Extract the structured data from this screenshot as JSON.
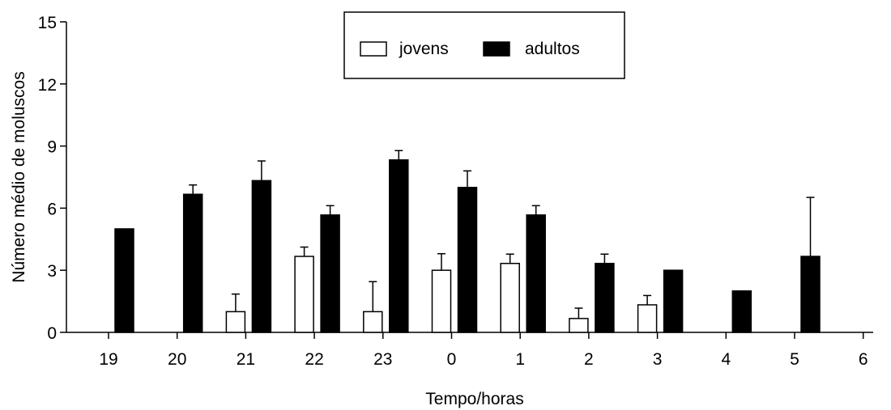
{
  "chart_data": {
    "type": "bar",
    "xlabel": "Tempo/horas",
    "ylabel": "Número médio de moluscos",
    "ylim": [
      0,
      15
    ],
    "yticks": [
      0,
      3,
      6,
      9,
      12,
      15
    ],
    "categories": [
      "19",
      "20",
      "21",
      "22",
      "23",
      "0",
      "1",
      "2",
      "3",
      "4",
      "5",
      "6"
    ],
    "series": [
      {
        "name": "jovens",
        "color": "#ffffff",
        "values": [
          null,
          null,
          1.0,
          3.67,
          1.0,
          3.0,
          3.33,
          0.67,
          1.33,
          null,
          null,
          null
        ],
        "errors": [
          null,
          null,
          0.85,
          0.45,
          1.45,
          0.8,
          0.45,
          0.5,
          0.45,
          null,
          null,
          null
        ]
      },
      {
        "name": "adultos",
        "color": "#000000",
        "values": [
          5.0,
          6.67,
          7.33,
          5.67,
          8.33,
          7.0,
          5.67,
          3.33,
          3.0,
          2.0,
          3.67,
          null
        ],
        "errors": [
          null,
          0.45,
          0.95,
          0.45,
          0.45,
          0.8,
          0.45,
          0.45,
          null,
          null,
          2.85,
          null
        ]
      }
    ],
    "legend": {
      "position": "top-center",
      "boxed": true
    },
    "grid": false
  }
}
